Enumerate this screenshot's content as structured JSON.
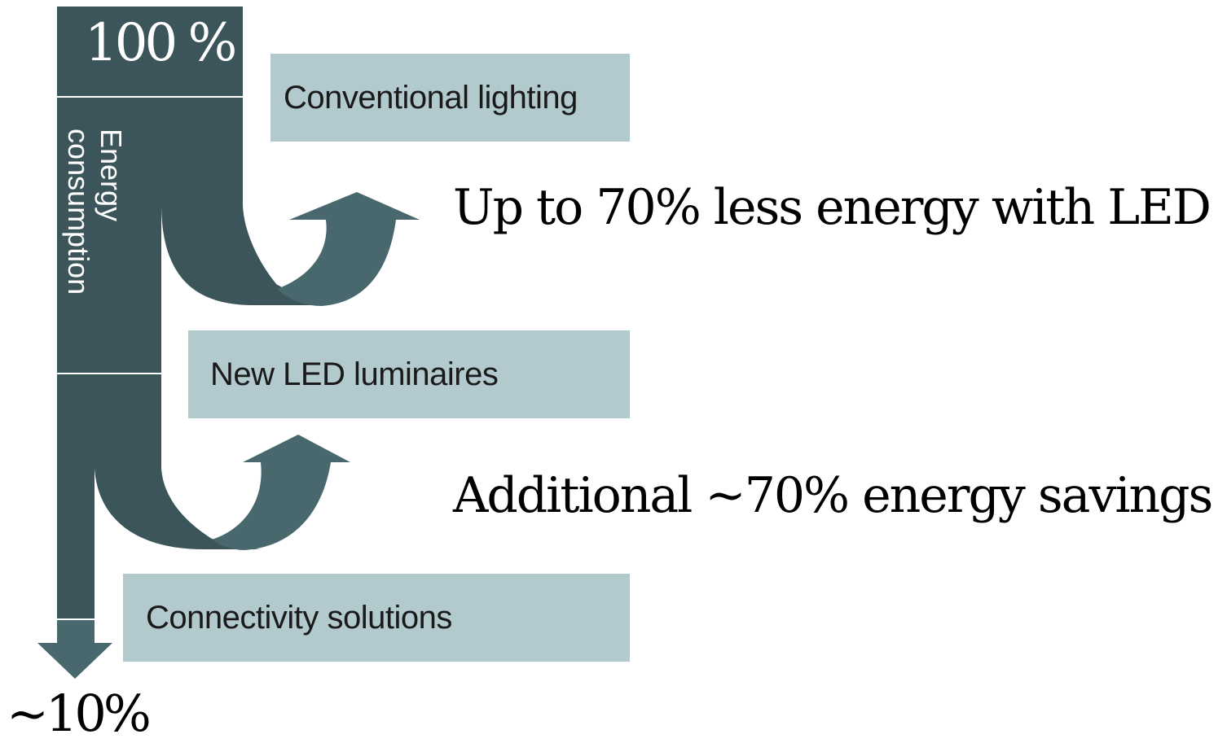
{
  "top_value": "100 %",
  "axis_label_line1": "Energy",
  "axis_label_line2": "consumption",
  "stages": [
    {
      "label": "Conventional lighting"
    },
    {
      "label": "New LED luminaires"
    },
    {
      "label": "Connectivity solutions"
    }
  ],
  "savings": [
    {
      "text": "Up to 70% less energy with LED"
    },
    {
      "text": "Additional ~70% energy savings"
    }
  ],
  "bottom_value": "~10%",
  "colors": {
    "dark_bar": "#3c555b",
    "arrow": "#48686d",
    "box_fill": "#b2c9ce",
    "divider": "#ffffff"
  }
}
